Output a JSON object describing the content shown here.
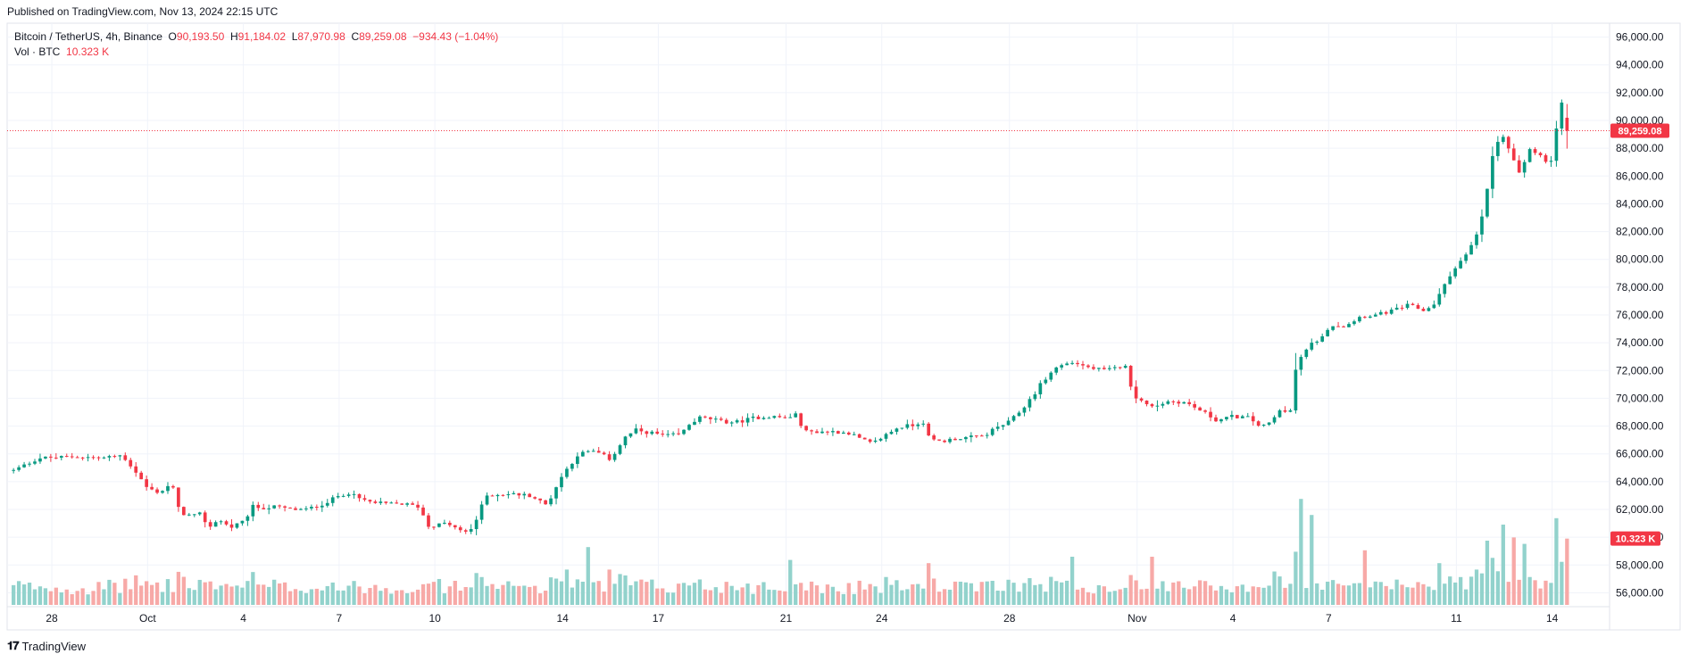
{
  "header": {
    "published": "Published on TradingView.com, Nov 13, 2024 22:15 UTC"
  },
  "legend": {
    "symbol": "Bitcoin / TetherUS, 4h, Binance",
    "o_label": "O",
    "o_value": "90,193.50",
    "h_label": "H",
    "h_value": "91,184.02",
    "l_label": "L",
    "l_value": "87,970.98",
    "c_label": "C",
    "c_value": "89,259.08",
    "change": "−934.43 (−1.04%)",
    "vol_label": "Vol · BTC",
    "vol_value": "10.323 K"
  },
  "logo": {
    "icon": "tradingview-logo-icon",
    "text": "TradingView"
  },
  "colors": {
    "up": "#089981",
    "down": "#f23645",
    "up_volume": "#92d2cc",
    "down_volume": "#f7a9a7",
    "grid": "#f0f3fa"
  },
  "chart_data": {
    "type": "candlestick",
    "interval": "4h",
    "symbol": "BTCUSDT",
    "ylim": [
      55000,
      97000
    ],
    "y_ticks": [
      "56,000.00",
      "58,000.00",
      "60,000.00",
      "62,000.00",
      "64,000.00",
      "66,000.00",
      "68,000.00",
      "70,000.00",
      "72,000.00",
      "74,000.00",
      "76,000.00",
      "78,000.00",
      "80,000.00",
      "82,000.00",
      "84,000.00",
      "86,000.00",
      "88,000.00",
      "90,000.00",
      "92,000.00",
      "94,000.00",
      "96,000.00"
    ],
    "x_ticks": [
      {
        "label": "28",
        "day": 0
      },
      {
        "label": "Oct",
        "day": 3
      },
      {
        "label": "4",
        "day": 6
      },
      {
        "label": "7",
        "day": 9
      },
      {
        "label": "10",
        "day": 12
      },
      {
        "label": "14",
        "day": 16
      },
      {
        "label": "17",
        "day": 19
      },
      {
        "label": "21",
        "day": 23
      },
      {
        "label": "24",
        "day": 26
      },
      {
        "label": "28",
        "day": 30
      },
      {
        "label": "Nov",
        "day": 34
      },
      {
        "label": "4",
        "day": 37
      },
      {
        "label": "7",
        "day": 40
      },
      {
        "label": "11",
        "day": 44
      },
      {
        "label": "14",
        "day": 47
      }
    ],
    "x_domain": [
      -1.4,
      48.8
    ],
    "last_price": "89,259.08",
    "last_price_value": 89259.08,
    "last_volume": "10.323 K",
    "last_volume_value": 10323,
    "close_path": [
      [
        -1.2,
        64800
      ],
      [
        -0.4,
        65700
      ],
      [
        0.8,
        65800
      ],
      [
        1.6,
        65700
      ],
      [
        2.2,
        65900
      ],
      [
        2.6,
        64800
      ],
      [
        3.0,
        63500
      ],
      [
        3.4,
        63200
      ],
      [
        3.6,
        63700
      ],
      [
        3.8,
        63500
      ],
      [
        4.0,
        61800
      ],
      [
        4.4,
        61500
      ],
      [
        4.7,
        61700
      ],
      [
        4.9,
        60600
      ],
      [
        5.2,
        61300
      ],
      [
        5.6,
        60700
      ],
      [
        6.0,
        61100
      ],
      [
        6.3,
        62200
      ],
      [
        6.7,
        62100
      ],
      [
        7.0,
        62200
      ],
      [
        7.5,
        62000
      ],
      [
        8.0,
        62000
      ],
      [
        8.6,
        62500
      ],
      [
        9.0,
        63000
      ],
      [
        9.3,
        63200
      ],
      [
        9.6,
        62800
      ],
      [
        10.0,
        62500
      ],
      [
        10.5,
        62400
      ],
      [
        11.0,
        62400
      ],
      [
        11.5,
        62200
      ],
      [
        11.8,
        60800
      ],
      [
        12.4,
        61000
      ],
      [
        12.9,
        60300
      ],
      [
        13.2,
        60700
      ],
      [
        13.6,
        63000
      ],
      [
        14.0,
        63100
      ],
      [
        14.5,
        63100
      ],
      [
        15.0,
        63000
      ],
      [
        15.5,
        62300
      ],
      [
        16.0,
        64500
      ],
      [
        16.5,
        66000
      ],
      [
        17.0,
        66200
      ],
      [
        17.5,
        65600
      ],
      [
        17.7,
        66300
      ],
      [
        18.0,
        67300
      ],
      [
        18.3,
        67700
      ],
      [
        18.8,
        67500
      ],
      [
        19.2,
        67300
      ],
      [
        19.7,
        67400
      ],
      [
        20.0,
        68200
      ],
      [
        20.3,
        68600
      ],
      [
        20.7,
        68500
      ],
      [
        21.0,
        68300
      ],
      [
        21.5,
        68300
      ],
      [
        22.0,
        68600
      ],
      [
        22.5,
        68700
      ],
      [
        23.0,
        68600
      ],
      [
        23.3,
        68800
      ],
      [
        23.6,
        67600
      ],
      [
        24.0,
        67600
      ],
      [
        24.5,
        67600
      ],
      [
        25.0,
        67500
      ],
      [
        25.3,
        67100
      ],
      [
        25.7,
        66700
      ],
      [
        26.0,
        67200
      ],
      [
        26.5,
        67900
      ],
      [
        27.0,
        68100
      ],
      [
        27.3,
        68300
      ],
      [
        27.5,
        67000
      ],
      [
        27.9,
        66900
      ],
      [
        28.3,
        67100
      ],
      [
        28.8,
        67200
      ],
      [
        29.2,
        67300
      ],
      [
        29.6,
        67900
      ],
      [
        30.0,
        68300
      ],
      [
        30.3,
        69000
      ],
      [
        30.5,
        69500
      ],
      [
        30.8,
        70400
      ],
      [
        31.0,
        71100
      ],
      [
        31.5,
        72300
      ],
      [
        32.0,
        72600
      ],
      [
        32.5,
        72200
      ],
      [
        33.0,
        72000
      ],
      [
        33.4,
        72200
      ],
      [
        33.6,
        72500
      ],
      [
        33.9,
        70200
      ],
      [
        34.3,
        69500
      ],
      [
        34.6,
        69500
      ],
      [
        35.0,
        69800
      ],
      [
        35.5,
        69700
      ],
      [
        36.0,
        69100
      ],
      [
        36.5,
        68400
      ],
      [
        37.0,
        68700
      ],
      [
        37.5,
        68600
      ],
      [
        37.9,
        67900
      ],
      [
        38.2,
        68300
      ],
      [
        38.5,
        69200
      ],
      [
        38.8,
        69100
      ],
      [
        39.0,
        72600
      ],
      [
        39.5,
        74000
      ],
      [
        39.9,
        74500
      ],
      [
        40.0,
        75300
      ],
      [
        40.5,
        75200
      ],
      [
        41.0,
        75900
      ],
      [
        41.5,
        76000
      ],
      [
        42.0,
        76300
      ],
      [
        42.5,
        76700
      ],
      [
        43.0,
        76300
      ],
      [
        43.3,
        76800
      ],
      [
        43.6,
        78000
      ],
      [
        44.0,
        79600
      ],
      [
        44.3,
        80300
      ],
      [
        44.6,
        81500
      ],
      [
        44.8,
        83000
      ],
      [
        45.0,
        85500
      ],
      [
        45.2,
        88300
      ],
      [
        45.5,
        88800
      ],
      [
        45.8,
        87000
      ],
      [
        46.0,
        86000
      ],
      [
        46.3,
        88000
      ],
      [
        46.6,
        87500
      ],
      [
        46.9,
        86800
      ],
      [
        47.1,
        87800
      ],
      [
        47.2,
        92500
      ],
      [
        47.4,
        90100
      ],
      [
        47.5,
        89259
      ]
    ],
    "volume_spikes": [
      [
        16.2,
        5.5
      ],
      [
        16.8,
        9.0
      ],
      [
        17.5,
        5.5
      ],
      [
        23.2,
        7.0
      ],
      [
        27.5,
        6.5
      ],
      [
        31.9,
        7.5
      ],
      [
        34.4,
        7.5
      ],
      [
        38.3,
        5.2
      ],
      [
        39.1,
        16.5
      ],
      [
        39.4,
        14.0
      ],
      [
        41.2,
        8.5
      ],
      [
        43.4,
        6.5
      ],
      [
        44.6,
        5.5
      ],
      [
        45.0,
        10.0
      ],
      [
        45.4,
        12.5
      ],
      [
        45.8,
        10.5
      ],
      [
        46.1,
        9.5
      ],
      [
        47.1,
        13.5
      ],
      [
        47.4,
        11.0
      ]
    ]
  }
}
